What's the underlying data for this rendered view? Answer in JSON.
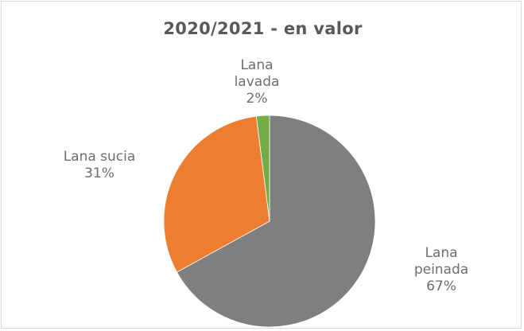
{
  "chart_data": {
    "type": "pie",
    "title": "2020/2021  - en valor",
    "slices": [
      {
        "name": "Lana peinada",
        "label_lines": [
          "Lana",
          "peinada"
        ],
        "value": 67,
        "value_label": "67%",
        "color": "#7f7f7f"
      },
      {
        "name": "Lana sucia",
        "label_lines": [
          "Lana sucia"
        ],
        "value": 31,
        "value_label": "31%",
        "color": "#ed7d31"
      },
      {
        "name": "Lana lavada",
        "label_lines": [
          "Lana",
          "lavada"
        ],
        "value": 2,
        "value_label": "2%",
        "color": "#70ad47"
      }
    ],
    "start_angle_deg": 0,
    "direction": "clockwise",
    "legend": "none"
  }
}
